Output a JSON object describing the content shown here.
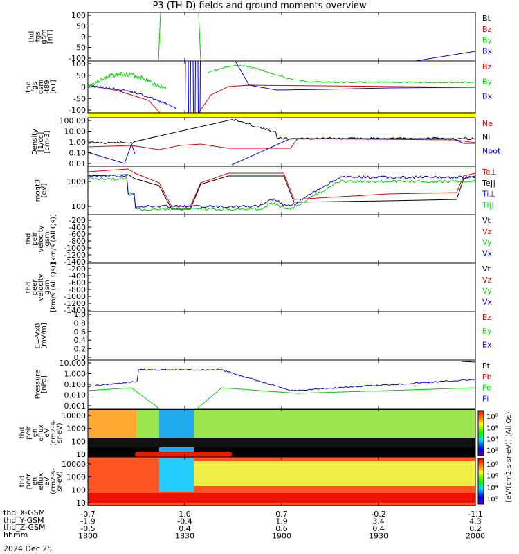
{
  "title": "P3 (TH-D) fields and ground moments overview",
  "date": "2024 Dec 25",
  "colors": {
    "black": "#000000",
    "red": "#dd0000",
    "green": "#00cc00",
    "blue": "#0000dd",
    "yellow": "#ffff00"
  },
  "chart_data": [
    {
      "type": "line",
      "ylabel": [
        "thd",
        "fgs",
        "gsm",
        "[nT]"
      ],
      "ylim": [
        -100,
        100
      ],
      "yticks": [
        "100",
        "50",
        "0",
        "-50",
        "-100"
      ],
      "legend": [
        {
          "name": "Bt",
          "color": "black"
        },
        {
          "name": "Bz",
          "color": "red"
        },
        {
          "name": "By",
          "color": "green"
        },
        {
          "name": "Bx",
          "color": "blue"
        }
      ]
    },
    {
      "type": "line",
      "ylabel": [
        "thd",
        "fgs",
        "gsm",
        "-t89",
        "[nT]"
      ],
      "ylim": [
        -120,
        120
      ],
      "yticks": [
        "100",
        "50",
        "0",
        "-50",
        "-100"
      ],
      "legend": [
        {
          "name": "Bz",
          "color": "red"
        },
        {
          "name": "By",
          "color": "green"
        },
        {
          "name": "Bx",
          "color": "blue"
        }
      ]
    },
    {
      "type": "line",
      "ylabel": [
        "Density",
        "[1/cc]",
        "[cm-3]"
      ],
      "ylim": [
        0.003,
        100
      ],
      "scale": "log",
      "yticks": [
        "100.00",
        "10.00",
        "1.00",
        "0.10",
        "0.01"
      ],
      "legend": [
        {
          "name": "Ne",
          "color": "red"
        },
        {
          "name": "Ni",
          "color": "black"
        },
        {
          "name": "Npot",
          "color": "blue"
        }
      ]
    },
    {
      "type": "line",
      "ylabel": [
        "moqt3",
        "[eV]"
      ],
      "ylim": [
        45,
        4000
      ],
      "scale": "log",
      "yticks": [
        "1000",
        "100"
      ],
      "legend": [
        {
          "name": "Te⊥",
          "color": "red"
        },
        {
          "name": "Te||",
          "color": "black"
        },
        {
          "name": "Ti⊥",
          "color": "blue"
        },
        {
          "name": "Ti||",
          "color": "green"
        }
      ]
    },
    {
      "type": "line",
      "ylabel": [
        "thd",
        "peir",
        "velocity",
        "gsm",
        "[km/s (All Qs)]"
      ],
      "ylim": [
        -1500,
        0
      ],
      "yticks": [
        "-200",
        "-400",
        "-600",
        "-800",
        "-1000",
        "-1200",
        "-1400"
      ],
      "legend": [
        {
          "name": "Vt",
          "color": "black"
        },
        {
          "name": "Vz",
          "color": "red"
        },
        {
          "name": "Vy",
          "color": "green"
        },
        {
          "name": "Vx",
          "color": "blue"
        }
      ]
    },
    {
      "type": "line",
      "ylabel": [
        "thd",
        "peer",
        "velocity",
        "gsm",
        "[km/s (All Qs)]"
      ],
      "ylim": [
        -1500,
        0
      ],
      "yticks": [
        "-200",
        "-400",
        "-600",
        "-800",
        "-1000",
        "-1200",
        "-1400"
      ],
      "legend": [
        {
          "name": "Vt",
          "color": "black"
        },
        {
          "name": "Vz",
          "color": "red"
        },
        {
          "name": "Vy",
          "color": "green"
        },
        {
          "name": "Vx",
          "color": "blue"
        }
      ]
    },
    {
      "type": "line",
      "ylabel": [
        "E=-VxB",
        "[mV/m]"
      ],
      "ylim": [
        0,
        1
      ],
      "yticks": [
        "1.0",
        "0.8",
        "0.6",
        "0.4",
        "0.2",
        "0.0"
      ],
      "legend": [
        {
          "name": "Ez",
          "color": "red"
        },
        {
          "name": "Ey",
          "color": "green"
        },
        {
          "name": "Ex",
          "color": "blue"
        }
      ]
    },
    {
      "type": "line",
      "ylabel": [
        "Pressure",
        "[nPa]"
      ],
      "ylim": [
        0.0007,
        40
      ],
      "scale": "log",
      "yticks": [
        "10.000",
        "1.000",
        "0.100",
        "0.010",
        "0.001"
      ],
      "legend": [
        {
          "name": "Pt",
          "color": "black"
        },
        {
          "name": "Pb",
          "color": "red"
        },
        {
          "name": "Pe",
          "color": "green"
        },
        {
          "name": "Pi",
          "color": "blue"
        }
      ]
    },
    {
      "type": "heatmap",
      "ylabel": [
        "thd",
        "peir",
        "en",
        "eflux",
        "eV",
        "(cm2-s-",
        "sr-eV)"
      ],
      "yticks": [
        "10000",
        "1000",
        "100",
        "10"
      ],
      "colorbar": [
        "10⁸",
        "10⁶",
        "10⁴",
        "10²"
      ]
    },
    {
      "type": "heatmap",
      "ylabel": [
        "thd",
        "peer",
        "en",
        "eflux",
        "eV",
        "(cm2-s-",
        "sr-eV)"
      ],
      "yticks": [
        "10000",
        "1000",
        "100",
        "10"
      ],
      "colorbar": [
        "10⁸",
        "10⁶",
        "10⁴",
        "10²"
      ]
    }
  ],
  "colorbar_label": "[eV/(cm2-s-sr-eV)] (All Qs)",
  "x_axis": {
    "rows": [
      {
        "label": "thd_X-GSM",
        "values": [
          "-0.7",
          "1.0",
          "0.7",
          "-0.2",
          "-1.1"
        ]
      },
      {
        "label": "thd_Y-GSM",
        "values": [
          "-1.9",
          "-0.4",
          "1.9",
          "3.4",
          "4.3"
        ]
      },
      {
        "label": "thd_Z-GSM",
        "values": [
          "-0.5",
          "0.4",
          "0.6",
          "0.4",
          "0.2"
        ]
      },
      {
        "label": "hhmm",
        "values": [
          "1800",
          "1830",
          "1900",
          "1930",
          "2000"
        ]
      }
    ]
  }
}
